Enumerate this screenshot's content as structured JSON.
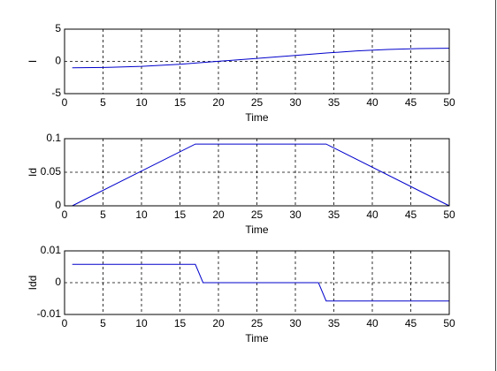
{
  "chart_data": [
    {
      "type": "line",
      "xlabel": "Time",
      "ylabel": "I",
      "x": [
        1,
        5,
        10,
        15,
        17,
        20,
        25,
        30,
        34,
        38,
        42,
        46,
        50
      ],
      "values": [
        -1,
        -0.95,
        -0.77,
        -0.44,
        -0.26,
        0.01,
        0.47,
        0.93,
        1.3,
        1.62,
        1.85,
        1.99,
        2.04
      ],
      "color": "#0000cc",
      "xlim": [
        0,
        50
      ],
      "ylim": [
        -5,
        5
      ],
      "xticks": [
        0,
        5,
        10,
        15,
        20,
        25,
        30,
        35,
        40,
        45,
        50
      ],
      "yticks": [
        -5,
        0,
        5
      ],
      "grid": true
    },
    {
      "type": "line",
      "xlabel": "Time",
      "ylabel": "Id",
      "x": [
        1,
        17,
        34,
        50
      ],
      "values": [
        0,
        0.092,
        0.092,
        0
      ],
      "color": "#0000cc",
      "xlim": [
        0,
        50
      ],
      "ylim": [
        0,
        0.1
      ],
      "xticks": [
        0,
        5,
        10,
        15,
        20,
        25,
        30,
        35,
        40,
        45,
        50
      ],
      "yticks": [
        0,
        0.05,
        0.1
      ],
      "grid": true
    },
    {
      "type": "line",
      "xlabel": "Time",
      "ylabel": "Idd",
      "x": [
        1,
        17,
        18,
        33,
        34,
        50
      ],
      "values": [
        0.00575,
        0.00575,
        0,
        0,
        -0.00575,
        -0.00575
      ],
      "color": "#0000cc",
      "xlim": [
        0,
        50
      ],
      "ylim": [
        -0.01,
        0.01
      ],
      "xticks": [
        0,
        5,
        10,
        15,
        20,
        25,
        30,
        35,
        40,
        45,
        50
      ],
      "yticks": [
        -0.01,
        0,
        0.01
      ],
      "grid": true
    }
  ]
}
